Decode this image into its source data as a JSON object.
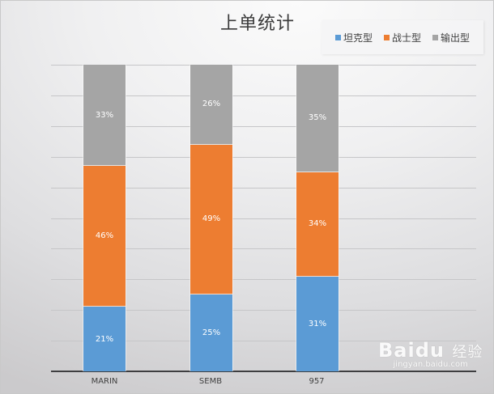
{
  "chart_data": {
    "type": "bar",
    "stacked": "percent",
    "title": "上单统计",
    "categories": [
      "MARIN",
      "SEMB",
      "957"
    ],
    "series": [
      {
        "name": "坦克型",
        "color": "#5b9bd5",
        "values": [
          21,
          25,
          31
        ],
        "labels": [
          "21%",
          "25%",
          "31%"
        ]
      },
      {
        "name": "战士型",
        "color": "#ed7d31",
        "values": [
          46,
          49,
          34
        ],
        "labels": [
          "46%",
          "49%",
          "34%"
        ]
      },
      {
        "name": "输出型",
        "color": "#a5a5a5",
        "values": [
          33,
          26,
          35
        ],
        "labels": [
          "33%",
          "26%",
          "35%"
        ]
      }
    ],
    "xlabel": "",
    "ylabel": "",
    "ylim": [
      0,
      100
    ],
    "grid": true,
    "gridline_count": 10,
    "legend_position": "top-right",
    "value_axis_labels_visible": false
  },
  "watermark": {
    "brand": "Bai",
    "brand2": "du",
    "brand_cn": "经验",
    "url": "jingyan.baidu.com"
  }
}
